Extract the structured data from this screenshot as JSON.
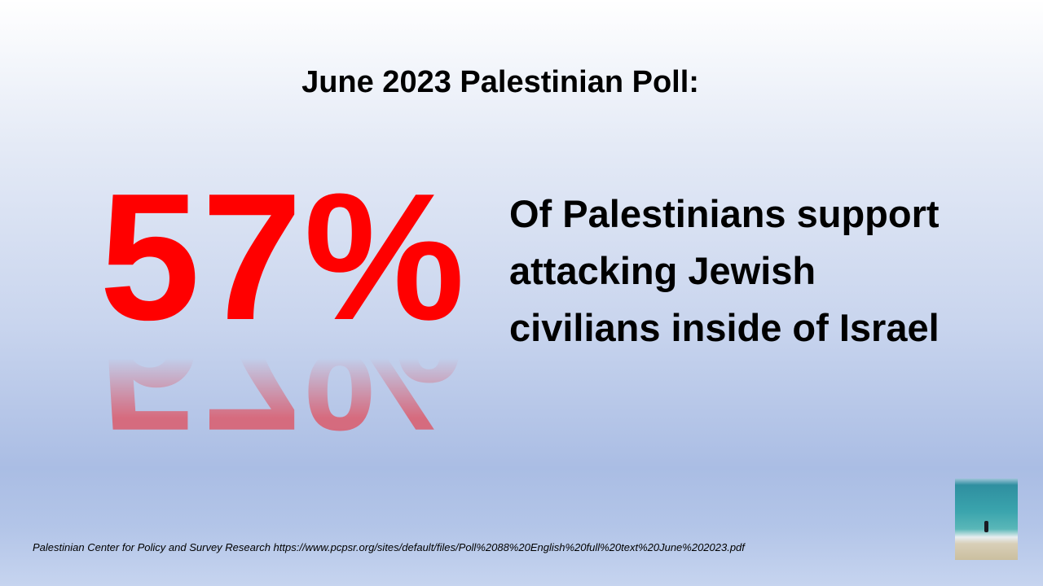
{
  "slide": {
    "title": "June 2023 Palestinian Poll:",
    "big_number": "57%",
    "statement_lines": [
      "Of Palestinians support",
      "attacking Jewish",
      "civilians inside of Israel"
    ],
    "source": "Palestinian Center for Policy and Survey Research https://www.pcpsr.org/sites/default/files/Poll%2088%20English%20full%20text%20June%202023.pdf",
    "accent_color": "#ff0000",
    "thumbnail_icon": "beach-photo-icon"
  }
}
